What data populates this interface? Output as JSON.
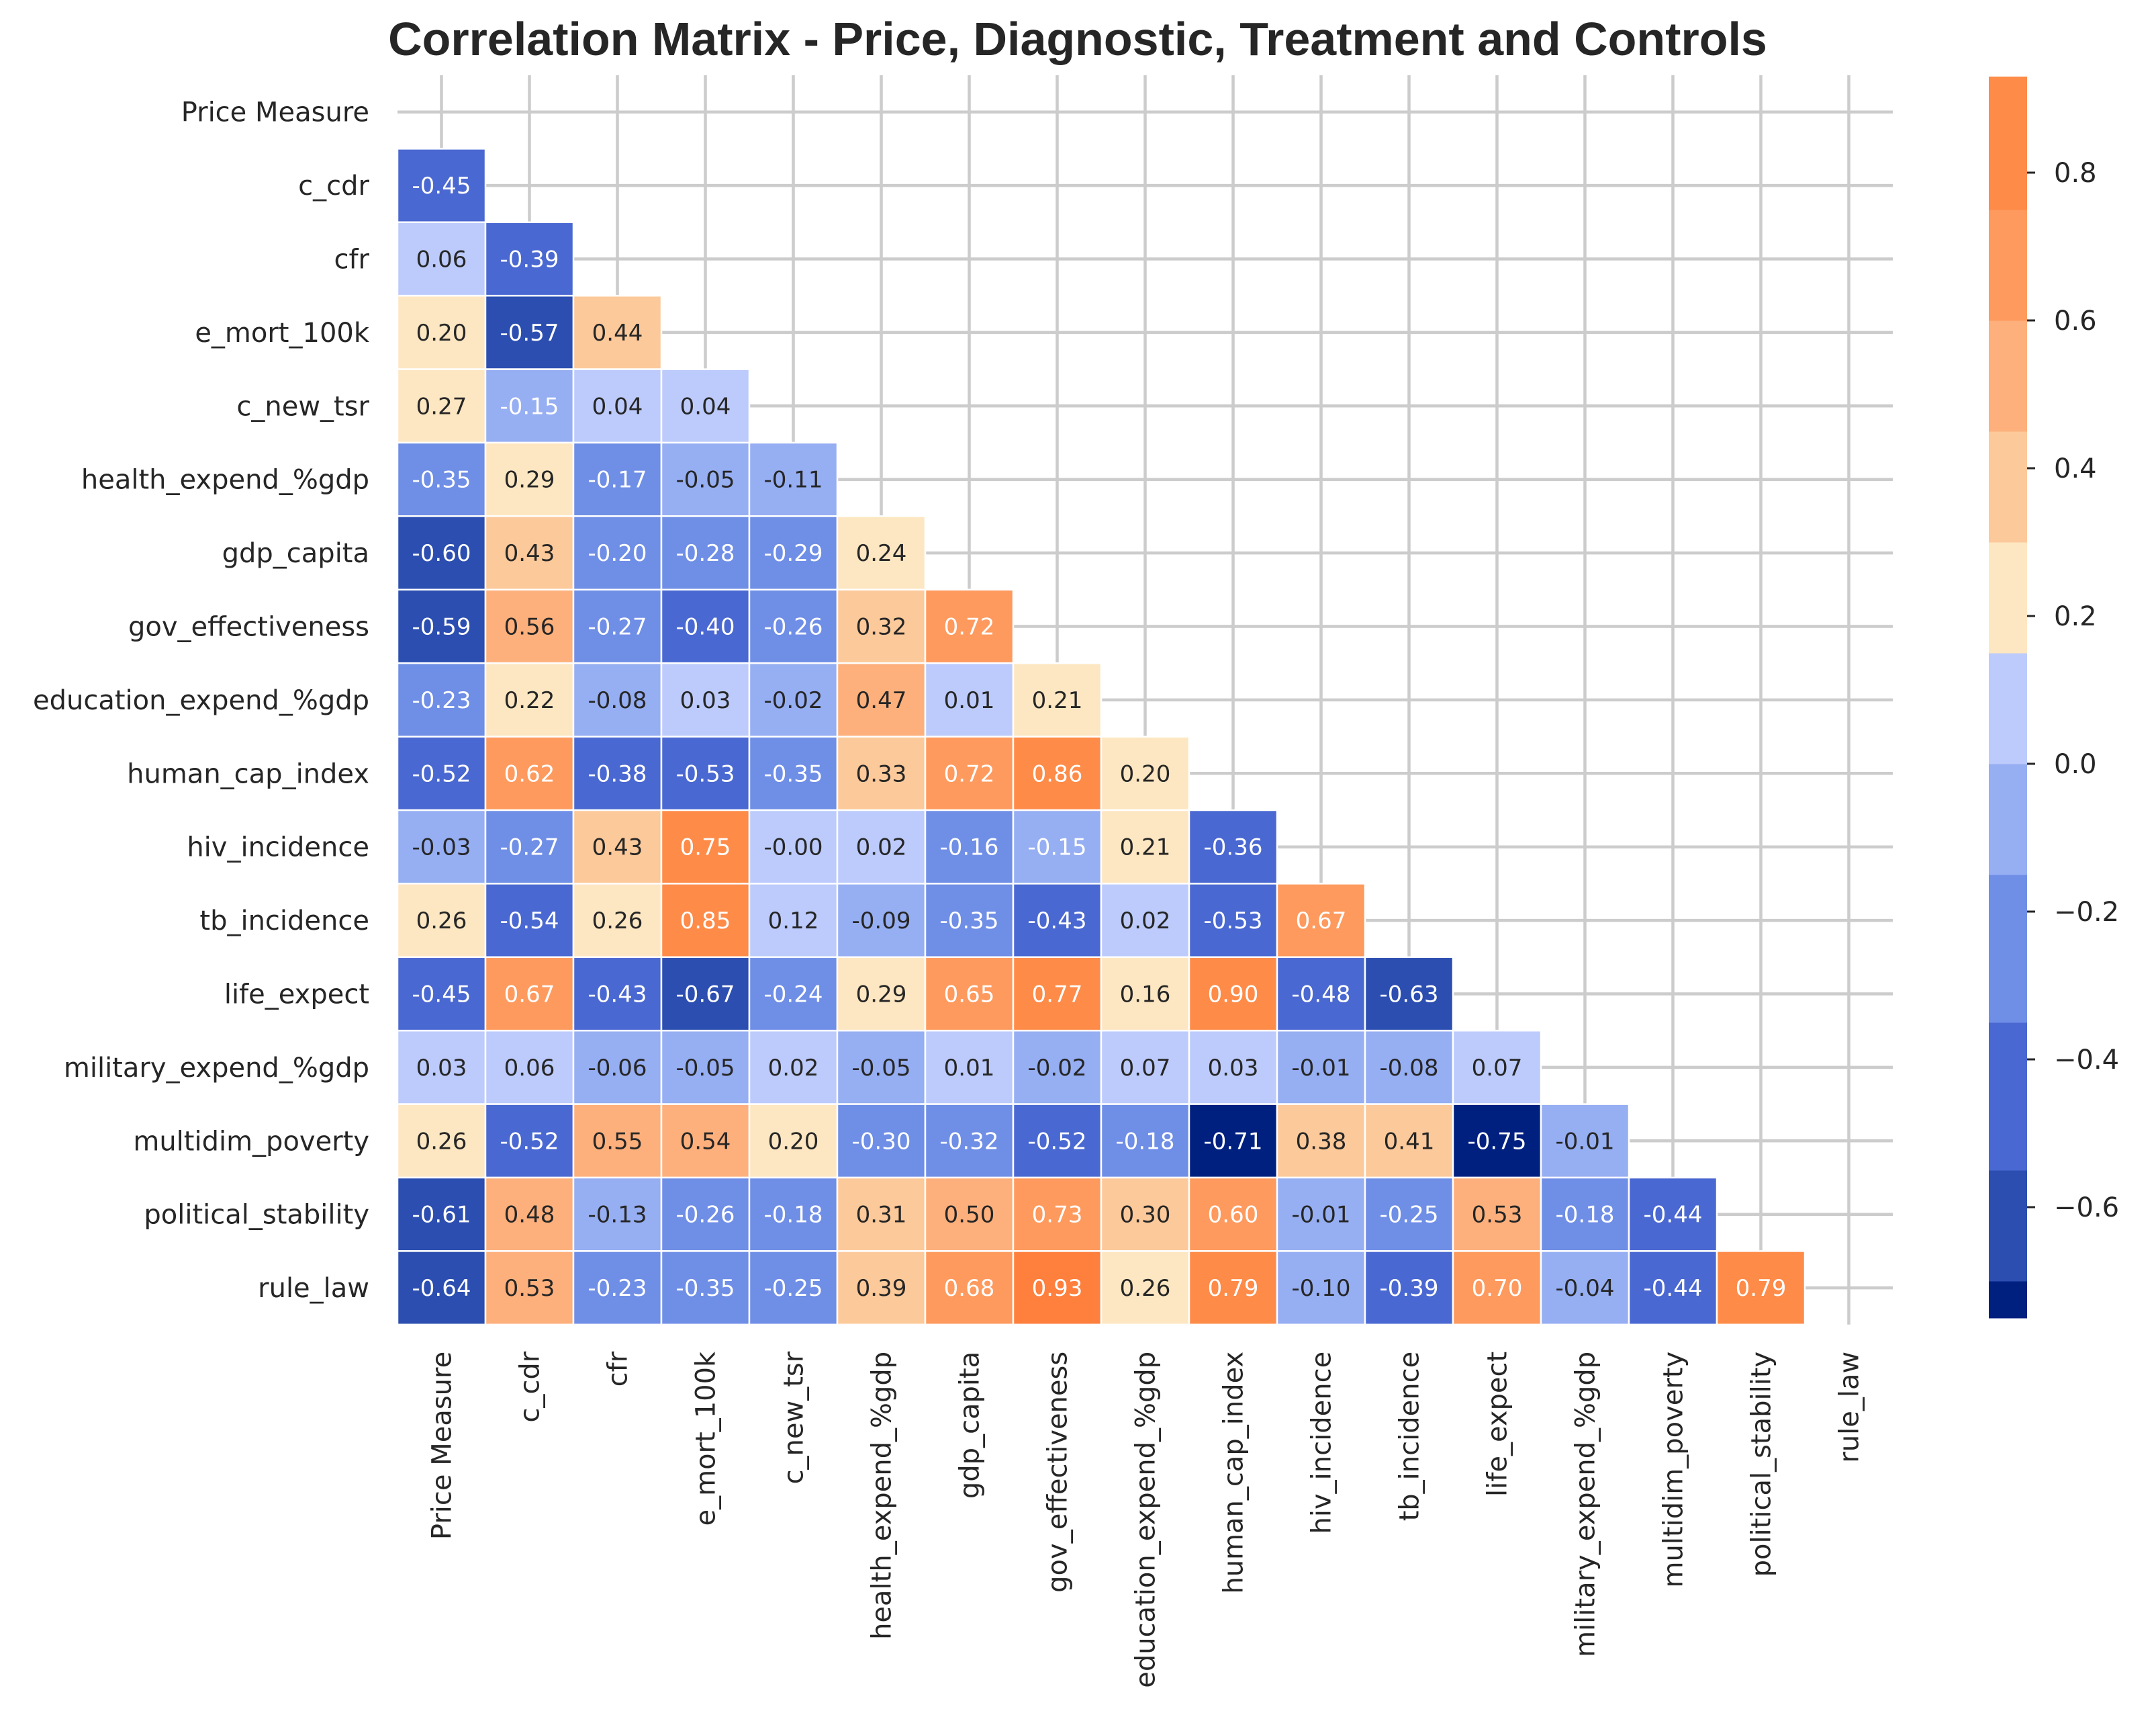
{
  "chart_data": {
    "type": "heatmap",
    "title": "Correlation Matrix - Price, Diagnostic, Treatment and Controls",
    "variables": [
      "Price Measure",
      "c_cdr",
      "cfr",
      "e_mort_100k",
      "c_new_tsr",
      "health_expend_%gdp",
      "gdp_capita",
      "gov_effectiveness",
      "education_expend_%gdp",
      "human_cap_index",
      "hiv_incidence",
      "tb_incidence",
      "life_expect",
      "military_expend_%gdp",
      "multidim_poverty",
      "political_stability",
      "rule_law"
    ],
    "lower_triangle": [
      [],
      [
        -0.45
      ],
      [
        0.06,
        -0.39
      ],
      [
        0.2,
        -0.57,
        0.44
      ],
      [
        0.27,
        -0.15,
        0.04,
        0.04
      ],
      [
        -0.35,
        0.29,
        -0.17,
        -0.05,
        -0.11
      ],
      [
        -0.6,
        0.43,
        -0.2,
        -0.28,
        -0.29,
        0.24
      ],
      [
        -0.59,
        0.56,
        -0.27,
        -0.4,
        -0.26,
        0.32,
        0.72
      ],
      [
        -0.23,
        0.22,
        -0.08,
        0.03,
        -0.02,
        0.47,
        0.01,
        0.21
      ],
      [
        -0.52,
        0.62,
        -0.38,
        -0.53,
        -0.35,
        0.33,
        0.72,
        0.86,
        0.2
      ],
      [
        -0.03,
        -0.27,
        0.43,
        0.75,
        -0.0,
        0.02,
        -0.16,
        -0.15,
        0.21,
        -0.36
      ],
      [
        0.26,
        -0.54,
        0.26,
        0.85,
        0.12,
        -0.09,
        -0.35,
        -0.43,
        0.02,
        -0.53,
        0.67
      ],
      [
        -0.45,
        0.67,
        -0.43,
        -0.67,
        -0.24,
        0.29,
        0.65,
        0.77,
        0.16,
        0.9,
        -0.48,
        -0.63
      ],
      [
        0.03,
        0.06,
        -0.06,
        -0.05,
        0.02,
        -0.05,
        0.01,
        -0.02,
        0.07,
        0.03,
        -0.01,
        -0.08,
        0.07
      ],
      [
        0.26,
        -0.52,
        0.55,
        0.54,
        0.2,
        -0.3,
        -0.32,
        -0.52,
        -0.18,
        -0.71,
        0.38,
        0.41,
        -0.75,
        -0.01
      ],
      [
        -0.61,
        0.48,
        -0.13,
        -0.26,
        -0.18,
        0.31,
        0.5,
        0.73,
        0.3,
        0.6,
        -0.01,
        -0.25,
        0.53,
        -0.18,
        -0.44
      ],
      [
        -0.64,
        0.53,
        -0.23,
        -0.35,
        -0.25,
        0.39,
        0.68,
        0.93,
        0.26,
        0.79,
        -0.1,
        -0.39,
        0.7,
        -0.04,
        -0.44,
        0.79
      ]
    ],
    "mask": "upper-triangle-and-diagonal",
    "annotation_format": "2 decimals",
    "grid": true,
    "colorbar": {
      "ticks": [
        "0.8",
        "0.6",
        "0.4",
        "0.2",
        "0.0",
        "−0.2",
        "−0.4",
        "−0.6"
      ],
      "tick_values": [
        0.8,
        0.6,
        0.4,
        0.2,
        0.0,
        -0.2,
        -0.4,
        -0.6
      ],
      "vmin": -0.75,
      "vmax": 0.93,
      "bin_edges": [
        -0.75,
        -0.7,
        -0.55,
        -0.35,
        -0.15,
        0.0,
        0.15,
        0.3,
        0.45,
        0.6,
        0.75,
        0.93
      ],
      "bin_colors": [
        "#002080",
        "#2b4eb0",
        "#4a68d1",
        "#6f8ee6",
        "#96aef2",
        "#bccbfb",
        "#fde7c2",
        "#fcc99a",
        "#fdb07c",
        "#fe9a5e",
        "#fe8b48",
        "#ff7f3c"
      ]
    },
    "label_colors": {
      "dark_text": "#262626",
      "light_text": "#ffffff"
    }
  }
}
